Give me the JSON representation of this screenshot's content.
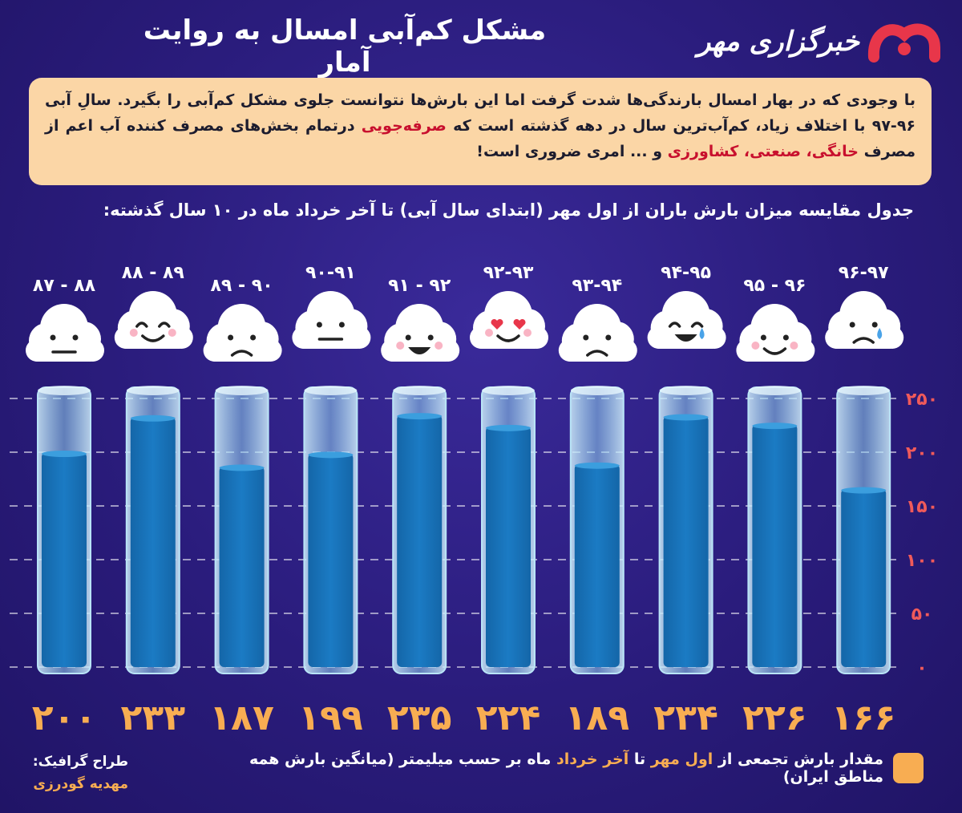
{
  "title": "مشکل کم‌آبی امسال به روایت آمار",
  "brand": "خبرگزاری مهر",
  "intro": {
    "p1": "با وجودی که در بهار امسال بارندگی‌ها شدت گرفت اما این بارش‌ها نتوانست جلوی مشکل کم‌آبی را بگیرد. سالِ آبی ۹۶-۹۷ با اختلاف زیاد، کم‌آب‌ترین سال در دهه گذشته است که ",
    "hl1": "صرفه‌جویی",
    "p2": " درتمام بخش‌های مصرف کننده آب اعم از مصرف ",
    "hl2": "خانگی، صنعتی، کشاورزی",
    "p3": " و ... امری ضروری است!"
  },
  "subtitle": "جدول مقایسه میزان بارش باران از اول مهر (ابتدای سال آبی) تا آخر خرداد ماه در ۱۰ سال گذشته:",
  "legend": {
    "p1": "مقدار بارش تجمعی از ",
    "hl1": "اول مهر",
    "p2": " تا ",
    "hl2": "آخر خرداد",
    "p3": " ماه بر حسب میلیمتر (میانگین بارش همه مناطق ایران)"
  },
  "credit": {
    "label": "طراح گرافیک:",
    "name": "مهدیه گودرزی"
  },
  "colors": {
    "background": "#2a1c7c",
    "water": "#1b7bc4",
    "tube": "#8fd0f0",
    "value_labels": "#f8ad52",
    "axis_labels": "#f05a5a",
    "intro_box": "#fbd6a6"
  },
  "chart_data": {
    "type": "bar",
    "categories": [
      "۸۷ - ۸۸",
      "۸۸ - ۸۹",
      "۸۹ - ۹۰",
      "۹۰-۹۱",
      "۹۱ - ۹۲",
      "۹۲-۹۳",
      "۹۳-۹۴",
      "۹۴-۹۵",
      "۹۵ - ۹۶",
      "۹۶-۹۷"
    ],
    "values": [
      200,
      233,
      187,
      199,
      235,
      224,
      189,
      234,
      226,
      166
    ],
    "value_labels": [
      "۲۰۰",
      "۲۳۳",
      "۱۸۷",
      "۱۹۹",
      "۲۳۵",
      "۲۲۴",
      "۱۸۹",
      "۲۳۴",
      "۲۲۶",
      "۱۶۶"
    ],
    "moods": [
      "neutral",
      "laugh",
      "sad",
      "flat",
      "happy",
      "love",
      "sad",
      "joy",
      "smile",
      "cry"
    ],
    "ylim": [
      0,
      250
    ],
    "yticks": [
      0,
      50,
      100,
      150,
      200,
      250
    ],
    "ytick_labels": [
      "۰",
      "۵۰",
      "۱۰۰",
      "۱۵۰",
      "۲۰۰",
      "۲۵۰"
    ],
    "grid": true,
    "title": "",
    "xlabel": "",
    "ylabel": ""
  }
}
